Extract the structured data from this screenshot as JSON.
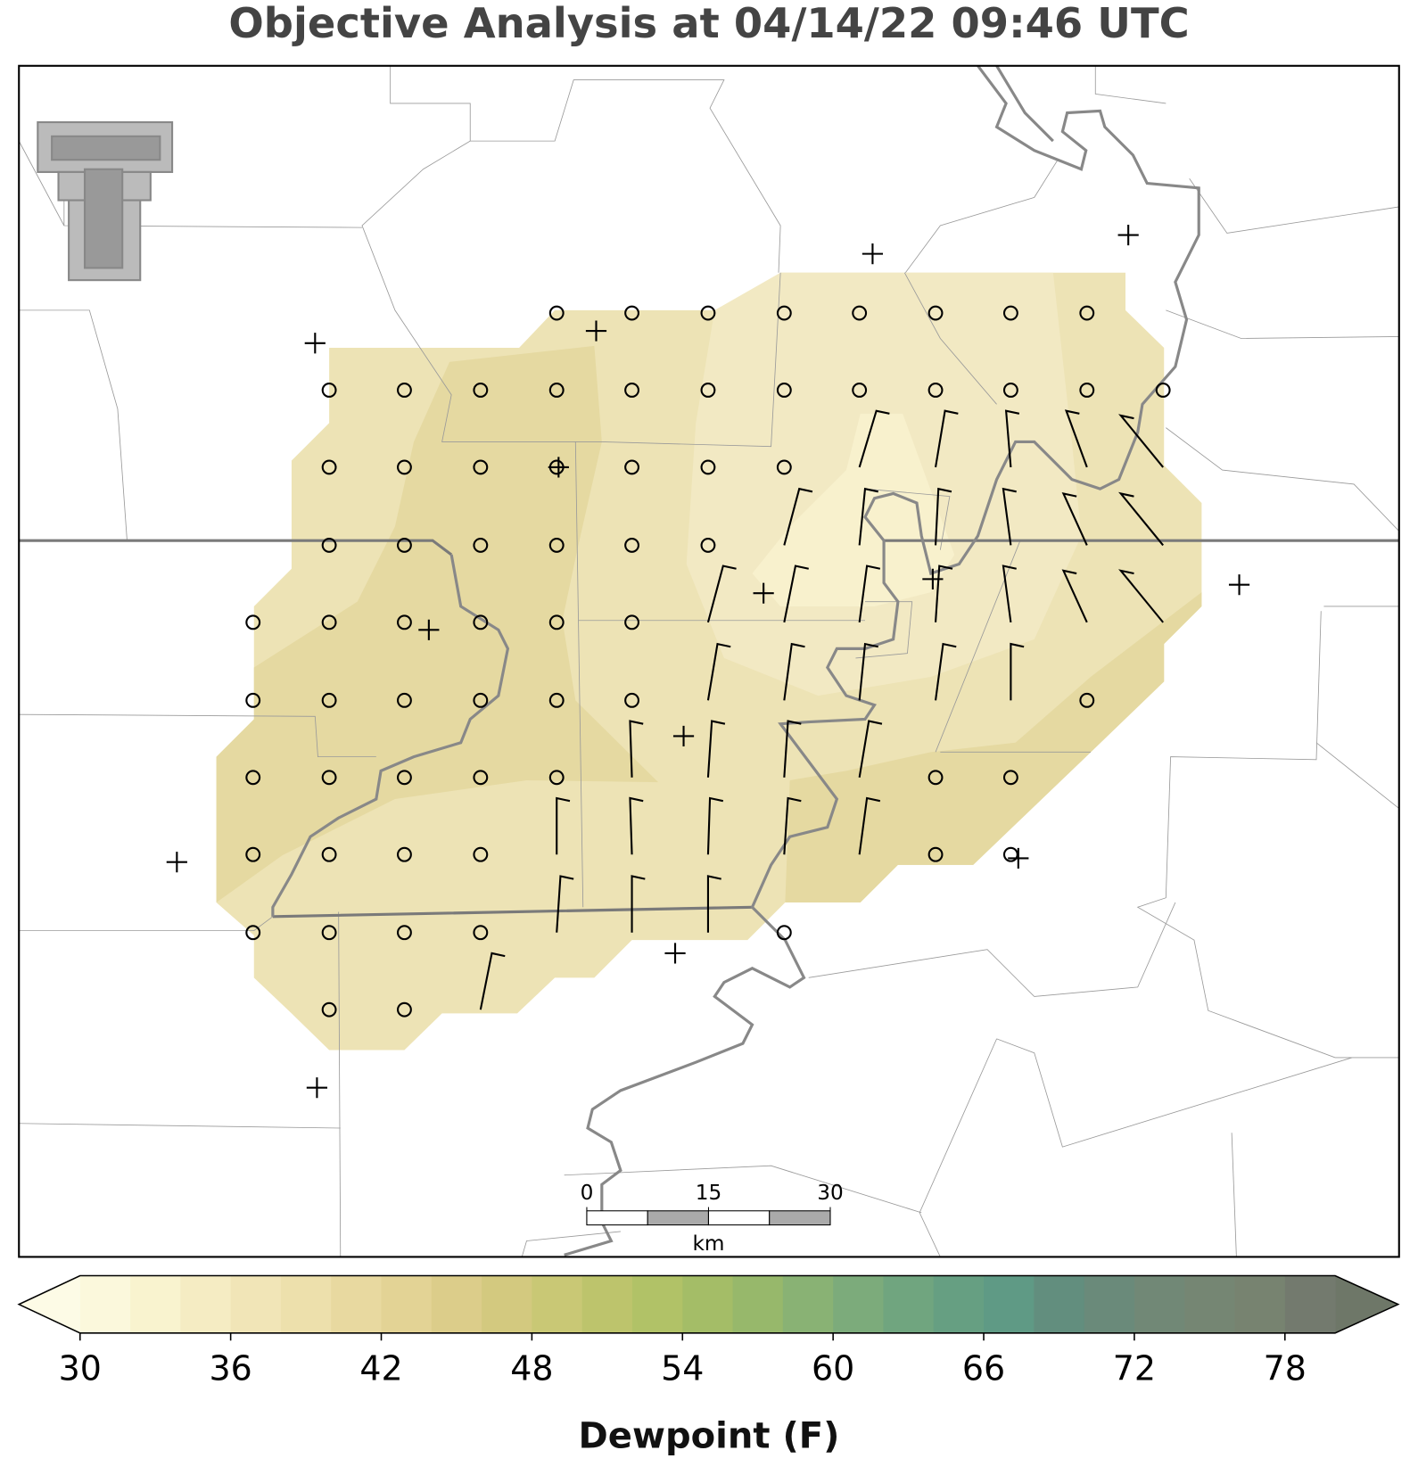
{
  "chart_data": {
    "type": "map",
    "title": "Objective Analysis at 04/14/22 09:46 UTC",
    "colorbar": {
      "label": "Dewpoint (F)",
      "lim": [
        30,
        80
      ],
      "ticks": [
        30,
        36,
        42,
        48,
        54,
        60,
        66,
        72,
        78
      ],
      "colors": [
        "#fbf8dc",
        "#f9f3cf",
        "#f5ecc3",
        "#f1e5b7",
        "#ede0ac",
        "#e8d9a0",
        "#e3d395",
        "#dccd8a",
        "#d3c97f",
        "#c9c875",
        "#bdc46c",
        "#b1c267",
        "#a4bd67",
        "#97b86b",
        "#89b274",
        "#7cab7b",
        "#70a57f",
        "#669f82",
        "#5f9a85",
        "#628e7e",
        "#6a8a7a",
        "#718876",
        "#758673",
        "#778370",
        "#737a6e"
      ],
      "under_color": "#fdfbe6",
      "over_color": "#6e7768"
    },
    "scale_bar": {
      "lim": [
        0,
        30
      ],
      "ticks": [
        0,
        15,
        30
      ],
      "unit": "km"
    }
  }
}
